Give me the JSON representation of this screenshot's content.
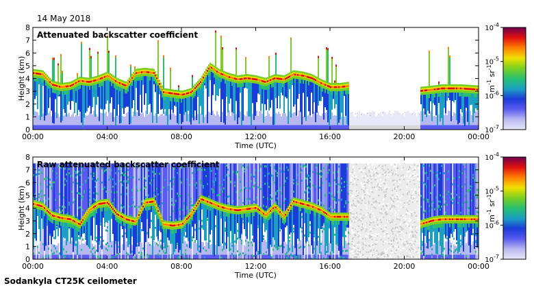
{
  "header": {
    "date": "14 May 2018"
  },
  "footer": {
    "instrument": "Sodankyla CT25K ceilometer"
  },
  "colors": {
    "scale": [
      "#e8e8f8",
      "#b8b8f0",
      "#5a5af0",
      "#1a3cd8",
      "#1aa0c0",
      "#28c070",
      "#7ad020",
      "#f0e000",
      "#ff8000",
      "#e01010",
      "#700050"
    ],
    "below_detection": "#d8d8d8"
  },
  "chart_data": [
    {
      "type": "heatmap",
      "title": "Attenuated backscatter coefficient",
      "xlabel": "Time (UTC)",
      "ylabel": "Height (km)",
      "x_ticks": [
        "00:00",
        "04:00",
        "08:00",
        "12:00",
        "16:00",
        "20:00",
        "00:00"
      ],
      "y_ticks": [
        "0",
        "1",
        "2",
        "3",
        "4",
        "5",
        "6",
        "7",
        "8"
      ],
      "xlim_hours": [
        0,
        24
      ],
      "ylim_km": [
        0,
        8
      ],
      "colorbar": {
        "scale": "log",
        "range": [
          1e-07,
          0.0001
        ],
        "ticks": [
          {
            "base": "10",
            "exp": "-4"
          },
          {
            "base": "10",
            "exp": "-5"
          },
          {
            "base": "10",
            "exp": "-6"
          },
          {
            "base": "10",
            "exp": "-7"
          }
        ],
        "unit": {
          "m": "m",
          "m_exp": "-1",
          "sr": "sr",
          "sr_exp": "-1"
        }
      },
      "cloud_layer_height_km": [
        [
          0.0,
          4.3
        ],
        [
          0.5,
          4.2
        ],
        [
          1.0,
          3.4
        ],
        [
          1.5,
          3.2
        ],
        [
          2.0,
          3.3
        ],
        [
          2.5,
          3.7
        ],
        [
          3.0,
          3.6
        ],
        [
          3.5,
          3.8
        ],
        [
          4.0,
          4.1
        ],
        [
          4.5,
          3.6
        ],
        [
          5.0,
          3.3
        ],
        [
          5.5,
          4.3
        ],
        [
          6.0,
          4.4
        ],
        [
          6.5,
          4.3
        ],
        [
          7.0,
          2.8
        ],
        [
          7.5,
          2.7
        ],
        [
          8.0,
          2.6
        ],
        [
          8.5,
          2.8
        ],
        [
          9.0,
          3.6
        ],
        [
          9.5,
          4.8
        ],
        [
          10.0,
          4.3
        ],
        [
          10.5,
          4.0
        ],
        [
          11.0,
          3.8
        ],
        [
          11.5,
          3.9
        ],
        [
          12.0,
          3.8
        ],
        [
          12.5,
          3.6
        ],
        [
          13.0,
          3.9
        ],
        [
          13.5,
          3.8
        ],
        [
          14.0,
          4.2
        ],
        [
          14.5,
          4.1
        ],
        [
          15.0,
          3.9
        ],
        [
          15.5,
          3.5
        ],
        [
          16.0,
          3.2
        ],
        [
          16.5,
          3.2
        ],
        [
          17.0,
          3.3
        ],
        [
          20.8,
          2.9
        ],
        [
          21.5,
          3.0
        ],
        [
          22.0,
          3.1
        ],
        [
          23.0,
          3.1
        ],
        [
          24.0,
          3.0
        ]
      ],
      "no_cloud_interval_hours": [
        17.0,
        20.8
      ]
    },
    {
      "type": "heatmap",
      "title": "Raw attenuated backscatter coefficient",
      "xlabel": "Time (UTC)",
      "ylabel": "Height (km)",
      "x_ticks": [
        "00:00",
        "04:00",
        "08:00",
        "12:00",
        "16:00",
        "20:00",
        "00:00"
      ],
      "y_ticks": [
        "0",
        "1",
        "2",
        "3",
        "4",
        "5",
        "6",
        "7",
        "8"
      ],
      "xlim_hours": [
        0,
        24
      ],
      "ylim_km": [
        0,
        8
      ],
      "colorbar": {
        "scale": "log",
        "range": [
          1e-07,
          0.0001
        ],
        "ticks": [
          {
            "base": "10",
            "exp": "-4"
          },
          {
            "base": "10",
            "exp": "-5"
          },
          {
            "base": "10",
            "exp": "-6"
          },
          {
            "base": "10",
            "exp": "-7"
          }
        ],
        "unit": {
          "m": "m",
          "m_exp": "-1",
          "sr": "sr",
          "sr_exp": "-1"
        }
      },
      "cloud_layer_height_km": [
        [
          0.0,
          4.2
        ],
        [
          0.5,
          4.0
        ],
        [
          1.0,
          3.3
        ],
        [
          1.5,
          3.1
        ],
        [
          2.0,
          3.0
        ],
        [
          2.5,
          2.6
        ],
        [
          3.0,
          3.7
        ],
        [
          3.5,
          4.2
        ],
        [
          4.0,
          4.3
        ],
        [
          4.5,
          3.4
        ],
        [
          5.0,
          3.0
        ],
        [
          5.5,
          2.8
        ],
        [
          6.0,
          4.3
        ],
        [
          6.5,
          4.4
        ],
        [
          7.0,
          2.6
        ],
        [
          7.5,
          2.5
        ],
        [
          8.0,
          2.6
        ],
        [
          8.5,
          3.4
        ],
        [
          9.0,
          4.6
        ],
        [
          9.5,
          4.3
        ],
        [
          10.0,
          4.0
        ],
        [
          10.5,
          3.8
        ],
        [
          11.0,
          3.7
        ],
        [
          11.5,
          3.8
        ],
        [
          12.0,
          3.9
        ],
        [
          12.5,
          3.3
        ],
        [
          13.0,
          4.0
        ],
        [
          13.5,
          3.2
        ],
        [
          14.0,
          4.4
        ],
        [
          14.5,
          4.2
        ],
        [
          15.0,
          4.0
        ],
        [
          15.5,
          3.7
        ],
        [
          16.0,
          3.2
        ],
        [
          16.5,
          3.2
        ],
        [
          17.0,
          3.2
        ],
        [
          20.8,
          2.6
        ],
        [
          21.5,
          2.9
        ],
        [
          22.0,
          3.0
        ],
        [
          23.0,
          3.0
        ],
        [
          24.0,
          3.0
        ]
      ],
      "no_cloud_interval_hours": [
        17.0,
        20.8
      ]
    }
  ]
}
